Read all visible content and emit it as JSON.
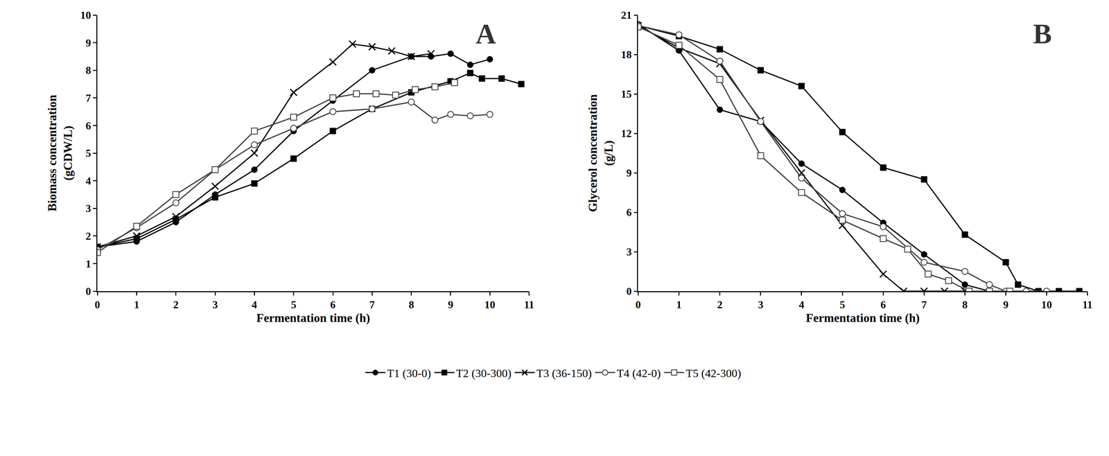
{
  "chart_data": [
    {
      "type": "line",
      "annotations": [
        "A"
      ],
      "x_label": "Fermentation time (h)",
      "y_label": "Biomass concentration\n(gCDW/L)",
      "xlim": [
        0,
        11
      ],
      "xticks": [
        0,
        1,
        2,
        3,
        4,
        5,
        6,
        7,
        8,
        9,
        10,
        11
      ],
      "ylim": [
        0,
        10
      ],
      "yticks": [
        0,
        1,
        2,
        3,
        4,
        5,
        6,
        7,
        8,
        9,
        10
      ],
      "grid": false,
      "legend": "bottom",
      "series": [
        {
          "name": "T1 (30-0)",
          "color": "#000000",
          "marker": "circle",
          "line_style": "solid",
          "x": [
            0,
            1,
            2,
            3,
            4,
            5,
            6,
            7,
            8,
            8.5,
            9,
            9.5,
            10
          ],
          "values": [
            1.6,
            1.8,
            2.5,
            3.5,
            4.4,
            5.8,
            6.9,
            8.0,
            8.5,
            8.5,
            8.6,
            8.2,
            8.4
          ]
        },
        {
          "name": "T2 (30-300)",
          "color": "#000000",
          "marker": "square",
          "line_style": "solid",
          "x": [
            0,
            1,
            2,
            3,
            4,
            5,
            6,
            7,
            8,
            9,
            9.5,
            9.8,
            10.3,
            10.8
          ],
          "values": [
            1.6,
            1.9,
            2.6,
            3.4,
            3.9,
            4.8,
            5.8,
            6.6,
            7.2,
            7.6,
            7.9,
            7.7,
            7.7,
            7.5
          ]
        },
        {
          "name": "T3 (36-150)",
          "color": "#000000",
          "marker": "x",
          "line_style": "solid",
          "x": [
            0,
            1,
            2,
            3,
            4,
            5,
            6,
            6.5,
            7,
            7.5,
            8,
            8.5
          ],
          "values": [
            1.6,
            2.0,
            2.7,
            3.8,
            5.0,
            7.2,
            8.3,
            8.95,
            8.85,
            8.7,
            8.5,
            8.6
          ]
        },
        {
          "name": "T4 (42-0)",
          "color": "#444444",
          "marker": "circle-open",
          "line_style": "solid",
          "x": [
            0,
            1,
            2,
            3,
            4,
            5,
            6,
            7,
            8,
            8.6,
            9,
            9.5,
            10
          ],
          "values": [
            1.5,
            2.3,
            3.2,
            4.4,
            5.3,
            5.9,
            6.5,
            6.6,
            6.85,
            6.2,
            6.4,
            6.35,
            6.4
          ]
        },
        {
          "name": "T5 (42-300)",
          "color": "#444444",
          "marker": "square-open",
          "line_style": "solid",
          "x": [
            0,
            1,
            2,
            3,
            4,
            5,
            6,
            6.6,
            7.1,
            7.6,
            8.1,
            8.6,
            9.1
          ],
          "values": [
            1.4,
            2.35,
            3.5,
            4.4,
            5.8,
            6.3,
            7.0,
            7.15,
            7.15,
            7.1,
            7.3,
            7.4,
            7.55
          ]
        }
      ]
    },
    {
      "type": "line",
      "annotations": [
        "B"
      ],
      "x_label": "Fermentation time (h)",
      "y_label": "Glycerol concentration\n(g/L)",
      "xlim": [
        0,
        11
      ],
      "xticks": [
        0,
        1,
        2,
        3,
        4,
        5,
        6,
        7,
        8,
        9,
        10,
        11
      ],
      "ylim": [
        0,
        21
      ],
      "yticks": [
        0,
        3,
        6,
        9,
        12,
        15,
        18,
        21
      ],
      "grid": false,
      "series": [
        {
          "name": "T1 (30-0)",
          "color": "#000000",
          "marker": "circle",
          "line_style": "solid",
          "x": [
            0,
            1,
            2,
            3,
            4,
            5,
            6,
            7,
            8,
            8.6,
            9,
            9.5,
            10
          ],
          "values": [
            20.3,
            18.3,
            13.8,
            12.9,
            9.7,
            7.7,
            5.2,
            2.8,
            0.5,
            0,
            0,
            0,
            0
          ]
        },
        {
          "name": "T2 (30-300)",
          "color": "#000000",
          "marker": "square",
          "line_style": "solid",
          "x": [
            0,
            1,
            2,
            3,
            4,
            5,
            6,
            7,
            8,
            9,
            9.3,
            9.8,
            10.3,
            10.8
          ],
          "values": [
            20.2,
            19.4,
            18.4,
            16.8,
            15.6,
            12.1,
            9.4,
            8.5,
            4.3,
            2.2,
            0.5,
            0,
            0,
            0
          ]
        },
        {
          "name": "T3 (36-150)",
          "color": "#000000",
          "marker": "x",
          "line_style": "solid",
          "x": [
            0,
            1,
            2,
            3,
            4,
            5,
            6,
            6.5,
            7,
            7.5,
            8
          ],
          "values": [
            20.2,
            18.5,
            17.3,
            13.0,
            9.0,
            5.0,
            1.3,
            0,
            0,
            0,
            0
          ]
        },
        {
          "name": "T4 (42-0)",
          "color": "#444444",
          "marker": "circle-open",
          "line_style": "solid",
          "x": [
            0,
            1,
            2,
            3,
            4,
            5,
            6,
            7,
            8,
            8.6,
            9,
            9.5,
            10
          ],
          "values": [
            20.2,
            19.5,
            17.5,
            12.9,
            8.6,
            5.9,
            4.9,
            2.2,
            1.5,
            0.5,
            0,
            0,
            0
          ]
        },
        {
          "name": "T5 (42-300)",
          "color": "#444444",
          "marker": "square-open",
          "line_style": "solid",
          "x": [
            0,
            1,
            2,
            3,
            4,
            5,
            6,
            6.6,
            7.1,
            7.6,
            8.1,
            8.6,
            9.1
          ],
          "values": [
            20.1,
            18.7,
            16.1,
            10.3,
            7.5,
            5.4,
            4.0,
            3.2,
            1.3,
            0.8,
            0,
            0,
            0
          ]
        }
      ]
    }
  ]
}
